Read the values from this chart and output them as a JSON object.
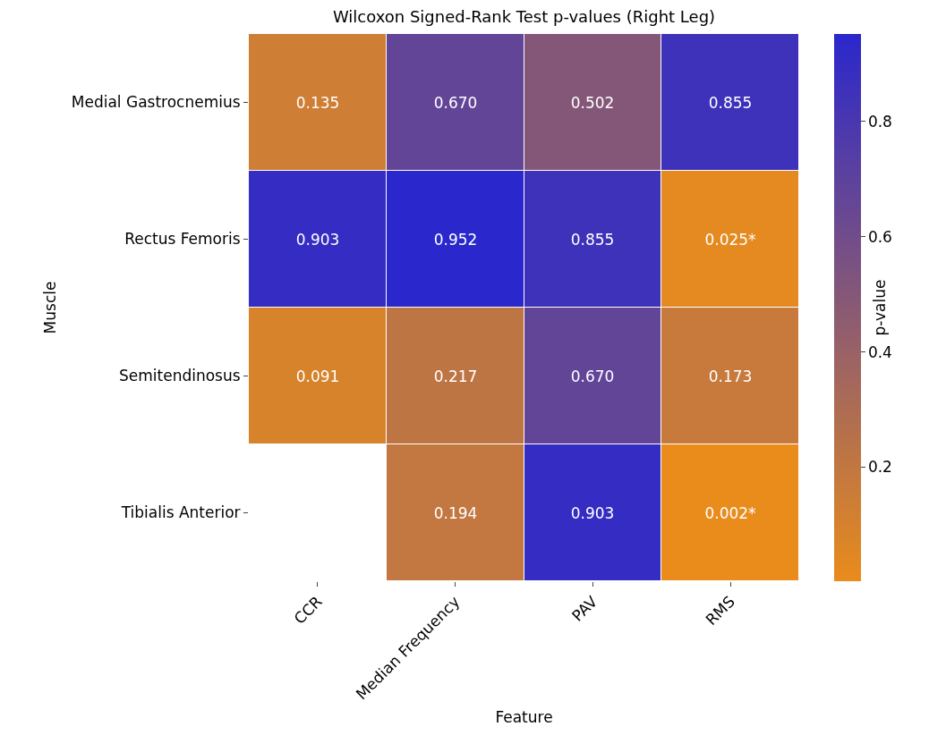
{
  "chart_data": {
    "type": "heatmap",
    "title": "Wilcoxon Signed-Rank Test p-values (Right Leg)",
    "xlabel": "Feature",
    "ylabel": "Muscle",
    "clabel": "p-value",
    "categories": [
      "CCR",
      "Median Frequency",
      "PAV",
      "RMS"
    ],
    "y_categories": [
      "Medial Gastrocnemius",
      "Rectus Femoris",
      "Semitendinosus",
      "Tibialis Anterior"
    ],
    "cells": [
      [
        0.135,
        0.67,
        0.502,
        0.855
      ],
      [
        0.903,
        0.952,
        0.855,
        0.025
      ],
      [
        0.091,
        0.217,
        0.67,
        0.173
      ],
      [
        null,
        0.194,
        0.903,
        0.002
      ]
    ],
    "cell_labels": [
      [
        "0.135",
        "0.670",
        "0.502",
        "0.855"
      ],
      [
        "0.903",
        "0.952",
        "0.855",
        "0.025*"
      ],
      [
        "0.091",
        "0.217",
        "0.670",
        "0.173"
      ],
      [
        null,
        "0.194",
        "0.903",
        "0.002*"
      ]
    ],
    "colors": [
      "#e98c1c",
      "#2a27cc"
    ],
    "clim": [
      0.002,
      0.952
    ],
    "cticks": [
      0.2,
      0.4,
      0.6,
      0.8
    ]
  }
}
